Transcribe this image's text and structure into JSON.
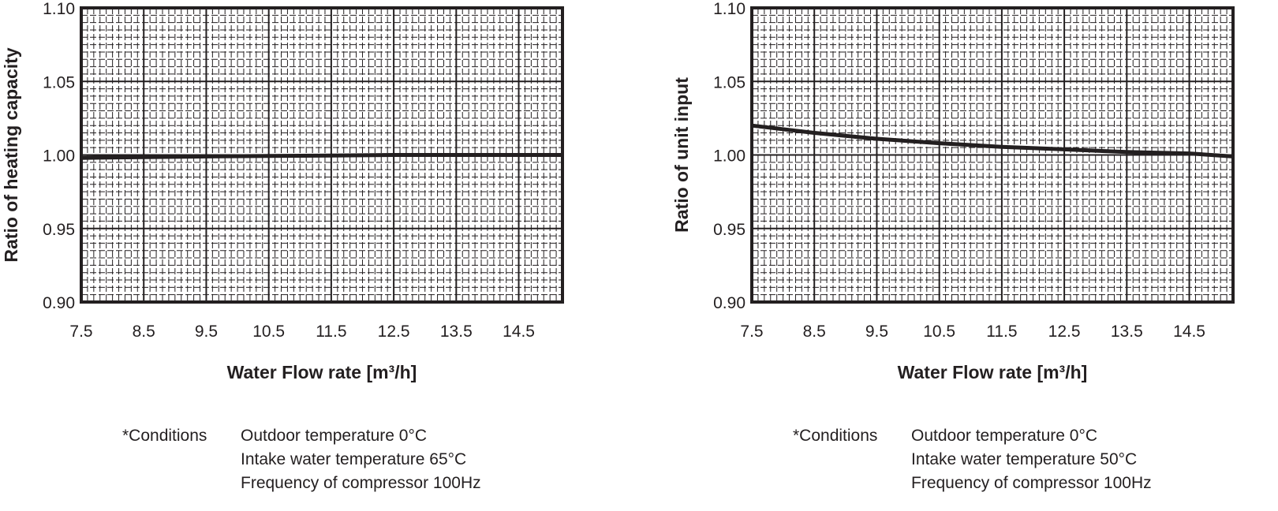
{
  "chart_data": [
    {
      "type": "line",
      "xlabel": "Water Flow rate [m³/h]",
      "ylabel": "Ratio of heating capacity",
      "xlim": [
        7.5,
        15.2
      ],
      "ylim": [
        0.9,
        1.1
      ],
      "xticks": [
        "7.5",
        "8.5",
        "9.5",
        "10.5",
        "11.5",
        "12.5",
        "13.5",
        "14.5"
      ],
      "yticks": [
        "0.90",
        "0.95",
        "1.00",
        "1.05",
        "1.10"
      ],
      "grid": true,
      "line_color": "#231f20",
      "series": [
        {
          "x": [
            7.5,
            8.5,
            9.5,
            10.5,
            11.5,
            12.5,
            13.5,
            14.5,
            15.2
          ],
          "y": [
            0.998,
            0.9985,
            0.999,
            0.9993,
            0.9996,
            1.0,
            1.0,
            1.0,
            1.0
          ]
        }
      ],
      "conditions": {
        "label": "*Conditions",
        "lines": [
          "Outdoor temperature 0°C",
          "Intake water temperature 65°C",
          "Frequency of compressor 100Hz"
        ]
      }
    },
    {
      "type": "line",
      "xlabel": "Water Flow rate [m³/h]",
      "ylabel": "Ratio of unit  input",
      "xlim": [
        7.5,
        15.2
      ],
      "ylim": [
        0.9,
        1.1
      ],
      "xticks": [
        "7.5",
        "8.5",
        "9.5",
        "10.5",
        "11.5",
        "12.5",
        "13.5",
        "14.5"
      ],
      "yticks": [
        "0.90",
        "0.95",
        "1.00",
        "1.05",
        "1.10"
      ],
      "grid": true,
      "line_color": "#231f20",
      "series": [
        {
          "x": [
            7.5,
            8.5,
            9.5,
            10.5,
            11.5,
            12.5,
            13.5,
            14.5,
            15.2
          ],
          "y": [
            1.02,
            1.015,
            1.011,
            1.008,
            1.0055,
            1.0038,
            1.002,
            1.001,
            0.999
          ]
        }
      ],
      "conditions": {
        "label": "*Conditions",
        "lines": [
          "Outdoor temperature 0°C",
          "Intake water temperature 50°C",
          "Frequency of compressor 100Hz"
        ]
      }
    }
  ]
}
